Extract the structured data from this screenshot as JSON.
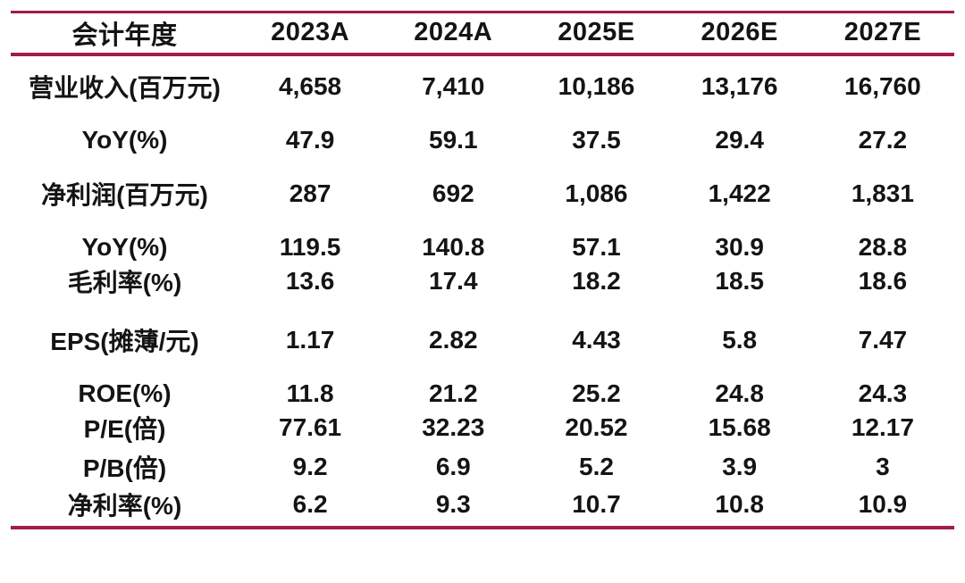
{
  "colors": {
    "rule": "#a21c43",
    "text": "#141414",
    "background": "#ffffff"
  },
  "table": {
    "header": [
      "会计年度",
      "2023A",
      "2024A",
      "2025E",
      "2026E",
      "2027E"
    ],
    "rows": [
      {
        "label": "营业收入(百万元)",
        "values": [
          "4,658",
          "7,410",
          "10,186",
          "13,176",
          "16,760"
        ]
      },
      {
        "label": "YoY(%)",
        "values": [
          "47.9",
          "59.1",
          "37.5",
          "29.4",
          "27.2"
        ]
      },
      {
        "label": "净利润(百万元)",
        "values": [
          "287",
          "692",
          "1,086",
          "1,422",
          "1,831"
        ]
      },
      {
        "label": "YoY(%)",
        "values": [
          "119.5",
          "140.8",
          "57.1",
          "30.9",
          "28.8"
        ]
      },
      {
        "label": "毛利率(%)",
        "values": [
          "13.6",
          "17.4",
          "18.2",
          "18.5",
          "18.6"
        ]
      },
      {
        "label": "EPS(摊薄/元)",
        "values": [
          "1.17",
          "2.82",
          "4.43",
          "5.8",
          "7.47"
        ]
      },
      {
        "label": "ROE(%)",
        "values": [
          "11.8",
          "21.2",
          "25.2",
          "24.8",
          "24.3"
        ]
      },
      {
        "label": "P/E(倍)",
        "values": [
          "77.61",
          "32.23",
          "20.52",
          "15.68",
          "12.17"
        ]
      },
      {
        "label": "P/B(倍)",
        "values": [
          "9.2",
          "6.9",
          "5.2",
          "3.9",
          "3"
        ]
      },
      {
        "label": "净利率(%)",
        "values": [
          "6.2",
          "9.3",
          "10.7",
          "10.8",
          "10.9"
        ]
      }
    ]
  },
  "chart_data": {
    "type": "table",
    "title": "",
    "columns": [
      "会计年度",
      "2023A",
      "2024A",
      "2025E",
      "2026E",
      "2027E"
    ],
    "rows": [
      [
        "营业收入(百万元)",
        4658,
        7410,
        10186,
        13176,
        16760
      ],
      [
        "YoY(%)",
        47.9,
        59.1,
        37.5,
        29.4,
        27.2
      ],
      [
        "净利润(百万元)",
        287,
        692,
        1086,
        1422,
        1831
      ],
      [
        "YoY(%)",
        119.5,
        140.8,
        57.1,
        30.9,
        28.8
      ],
      [
        "毛利率(%)",
        13.6,
        17.4,
        18.2,
        18.5,
        18.6
      ],
      [
        "EPS(摊薄/元)",
        1.17,
        2.82,
        4.43,
        5.8,
        7.47
      ],
      [
        "ROE(%)",
        11.8,
        21.2,
        25.2,
        24.8,
        24.3
      ],
      [
        "P/E(倍)",
        77.61,
        32.23,
        20.52,
        15.68,
        12.17
      ],
      [
        "P/B(倍)",
        9.2,
        6.9,
        5.2,
        3.9,
        3
      ],
      [
        "净利率(%)",
        6.2,
        9.3,
        10.7,
        10.8,
        10.9
      ]
    ],
    "layout_hints": {
      "rules": "horizontal crimson rules at top, below header, and bottom only",
      "grid": false,
      "alignment": "all cells centered",
      "grouped_rows_with_extra_space_before": [
        0,
        1,
        2,
        3,
        5,
        6
      ]
    }
  }
}
